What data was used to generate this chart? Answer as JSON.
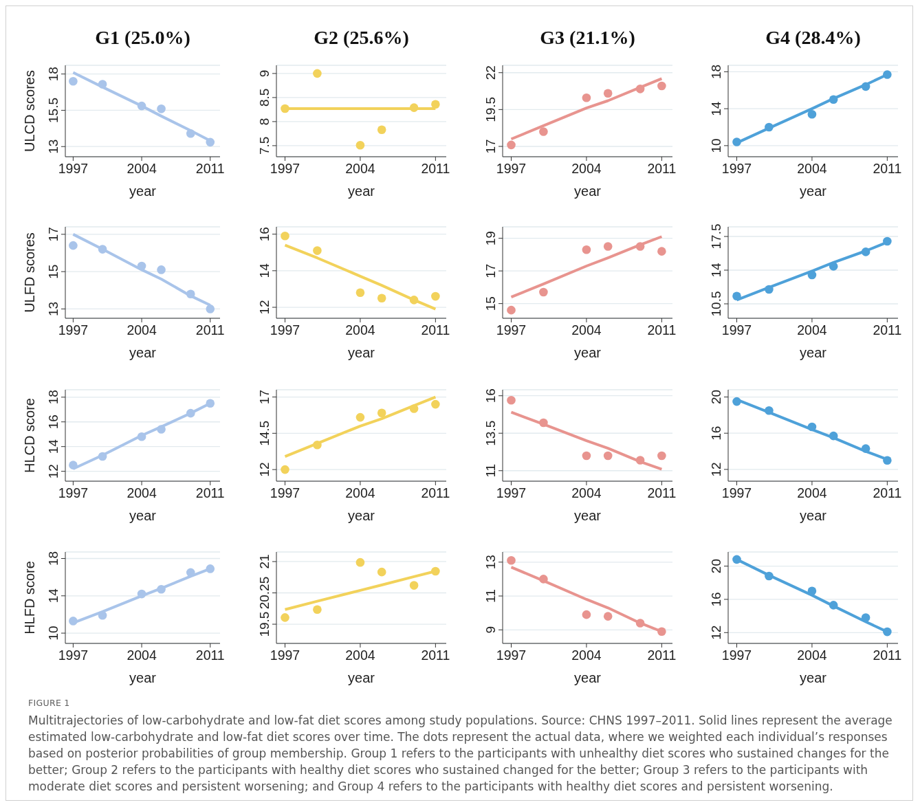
{
  "chart_data": [
    {
      "type": "scatter",
      "title": "G1 (25.0%)",
      "ylabel": "ULCD scores",
      "xlabel": "year",
      "x": [
        1997,
        2000,
        2004,
        2006,
        2009,
        2011
      ],
      "series": [
        {
          "color": "#a9c4ea",
          "values": [
            17.5,
            17.3,
            15.8,
            15.6,
            13.9,
            13.3
          ]
        },
        {
          "type": "line",
          "marker": "none",
          "color": "#a9c4ea",
          "values": [
            18.1,
            17.1,
            15.8,
            15.1,
            14.1,
            13.4
          ]
        }
      ],
      "xlim": [
        1996.2,
        2012
      ],
      "xticks": [
        1997,
        2004,
        2011
      ],
      "ylim": [
        12.3,
        18.6
      ],
      "yticks": [
        13,
        15.5,
        18
      ],
      "grid": "y",
      "marker": "circle"
    },
    {
      "type": "scatter",
      "title": "G2 (25.6%)",
      "xlabel": "year",
      "x": [
        1997,
        2000,
        2004,
        2006,
        2009,
        2011
      ],
      "series": [
        {
          "color": "#f2d25b",
          "values": [
            8.27,
            9.0,
            7.51,
            7.83,
            8.29,
            8.36
          ]
        },
        {
          "type": "line",
          "marker": "none",
          "color": "#f2d25b",
          "values": [
            8.27,
            8.27,
            8.27,
            8.27,
            8.27,
            8.27
          ]
        }
      ],
      "xlim": [
        1996.2,
        2012
      ],
      "xticks": [
        1997,
        2004,
        2011
      ],
      "ylim": [
        7.27,
        9.17
      ],
      "yticks": [
        7.5,
        8,
        8.5,
        9
      ],
      "grid": "y",
      "marker": "circle"
    },
    {
      "type": "scatter",
      "title": "G3 (21.1%)",
      "xlabel": "year",
      "x": [
        1997,
        2000,
        2004,
        2006,
        2009,
        2011
      ],
      "series": [
        {
          "color": "#e8948f",
          "values": [
            17.1,
            18.0,
            20.3,
            20.6,
            20.9,
            21.1
          ]
        },
        {
          "type": "line",
          "marker": "none",
          "color": "#e8948f",
          "values": [
            17.5,
            18.4,
            19.6,
            20.1,
            21.0,
            21.6
          ]
        }
      ],
      "xlim": [
        1996.2,
        2012
      ],
      "xticks": [
        1997,
        2004,
        2011
      ],
      "ylim": [
        16.3,
        22.5
      ],
      "yticks": [
        17,
        19.5,
        22
      ],
      "grid": "y",
      "marker": "circle"
    },
    {
      "type": "scatter",
      "title": "G4 (28.4%)",
      "xlabel": "year",
      "x": [
        1997,
        2000,
        2004,
        2006,
        2009,
        2011
      ],
      "series": [
        {
          "color": "#4ea1d9",
          "values": [
            10.4,
            12.0,
            13.4,
            15.0,
            16.4,
            17.7
          ]
        },
        {
          "type": "line",
          "marker": "none",
          "color": "#4ea1d9",
          "values": [
            10.3,
            11.9,
            14.0,
            15.1,
            16.6,
            17.7
          ]
        }
      ],
      "xlim": [
        1996.2,
        2012
      ],
      "xticks": [
        1997,
        2004,
        2011
      ],
      "ylim": [
        8.8,
        18.7
      ],
      "yticks": [
        10,
        14,
        18
      ],
      "grid": "y",
      "marker": "circle"
    },
    {
      "type": "scatter",
      "ylabel": "ULFD scores",
      "xlabel": "year",
      "x": [
        1997,
        2000,
        2004,
        2006,
        2009,
        2011
      ],
      "series": [
        {
          "color": "#a9c4ea",
          "values": [
            16.4,
            16.2,
            15.3,
            15.1,
            13.8,
            13.0
          ]
        },
        {
          "type": "line",
          "marker": "none",
          "color": "#a9c4ea",
          "values": [
            17.0,
            16.2,
            15.1,
            14.6,
            13.7,
            13.2
          ]
        }
      ],
      "xlim": [
        1996.2,
        2012
      ],
      "xticks": [
        1997,
        2004,
        2011
      ],
      "ylim": [
        12.5,
        17.4
      ],
      "yticks": [
        13,
        15,
        17
      ],
      "grid": "y",
      "marker": "circle"
    },
    {
      "type": "scatter",
      "xlabel": "year",
      "x": [
        1997,
        2000,
        2004,
        2006,
        2009,
        2011
      ],
      "series": [
        {
          "color": "#f2d25b",
          "values": [
            15.9,
            15.1,
            12.8,
            12.5,
            12.4,
            12.6
          ]
        },
        {
          "type": "line",
          "marker": "none",
          "color": "#f2d25b",
          "values": [
            15.4,
            14.7,
            13.7,
            13.2,
            12.4,
            11.9
          ]
        }
      ],
      "xlim": [
        1996.2,
        2012
      ],
      "xticks": [
        1997,
        2004,
        2011
      ],
      "ylim": [
        11.4,
        16.4
      ],
      "yticks": [
        12,
        14,
        16
      ],
      "grid": "y",
      "marker": "circle"
    },
    {
      "type": "scatter",
      "xlabel": "year",
      "x": [
        1997,
        2000,
        2004,
        2006,
        2009,
        2011
      ],
      "series": [
        {
          "color": "#e8948f",
          "values": [
            14.6,
            15.7,
            18.3,
            18.5,
            18.5,
            18.2
          ]
        },
        {
          "type": "line",
          "marker": "none",
          "color": "#e8948f",
          "values": [
            15.4,
            16.2,
            17.3,
            17.8,
            18.6,
            19.1
          ]
        }
      ],
      "xlim": [
        1996.2,
        2012
      ],
      "xticks": [
        1997,
        2004,
        2011
      ],
      "ylim": [
        14.1,
        19.7
      ],
      "yticks": [
        15,
        17,
        19
      ],
      "grid": "y",
      "marker": "circle"
    },
    {
      "type": "scatter",
      "xlabel": "year",
      "x": [
        1997,
        2000,
        2004,
        2006,
        2009,
        2011
      ],
      "series": [
        {
          "color": "#4ea1d9",
          "values": [
            11.3,
            12.0,
            13.5,
            14.4,
            15.9,
            17.0
          ]
        },
        {
          "type": "line",
          "marker": "none",
          "color": "#4ea1d9",
          "values": [
            10.9,
            12.2,
            13.9,
            14.8,
            16.0,
            16.9
          ]
        }
      ],
      "xlim": [
        1996.2,
        2012
      ],
      "xticks": [
        1997,
        2004,
        2011
      ],
      "ylim": [
        9.0,
        18.5
      ],
      "yticks": [
        10.5,
        14,
        17.5
      ],
      "grid": "y",
      "marker": "circle"
    },
    {
      "type": "scatter",
      "ylabel": "HLCD score",
      "xlabel": "year",
      "x": [
        1997,
        2000,
        2004,
        2006,
        2009,
        2011
      ],
      "series": [
        {
          "color": "#a9c4ea",
          "values": [
            12.5,
            13.2,
            14.8,
            15.4,
            16.7,
            17.5
          ]
        },
        {
          "type": "line",
          "marker": "none",
          "color": "#a9c4ea",
          "values": [
            12.2,
            13.3,
            14.9,
            15.6,
            16.7,
            17.5
          ]
        }
      ],
      "xlim": [
        1996.2,
        2012
      ],
      "xticks": [
        1997,
        2004,
        2011
      ],
      "ylim": [
        11.2,
        18.6
      ],
      "yticks": [
        12,
        14,
        16,
        18
      ],
      "grid": "y",
      "marker": "circle"
    },
    {
      "type": "scatter",
      "xlabel": "year",
      "x": [
        1997,
        2000,
        2004,
        2006,
        2009,
        2011
      ],
      "series": [
        {
          "color": "#f2d25b",
          "values": [
            12.0,
            13.7,
            15.6,
            15.9,
            16.2,
            16.5
          ]
        },
        {
          "type": "line",
          "marker": "none",
          "color": "#f2d25b",
          "values": [
            12.9,
            13.8,
            15.0,
            15.5,
            16.4,
            17.0
          ]
        }
      ],
      "xlim": [
        1996.2,
        2012
      ],
      "xticks": [
        1997,
        2004,
        2011
      ],
      "ylim": [
        11.2,
        17.5
      ],
      "yticks": [
        12,
        14.5,
        17
      ],
      "grid": "y",
      "marker": "circle"
    },
    {
      "type": "scatter",
      "xlabel": "year",
      "x": [
        1997,
        2000,
        2004,
        2006,
        2009,
        2011
      ],
      "series": [
        {
          "color": "#e8948f",
          "values": [
            15.7,
            14.2,
            12.0,
            12.0,
            11.7,
            12.0
          ]
        },
        {
          "type": "line",
          "marker": "none",
          "color": "#e8948f",
          "values": [
            14.9,
            14.1,
            13.0,
            12.5,
            11.6,
            11.1
          ]
        }
      ],
      "xlim": [
        1996.2,
        2012
      ],
      "xticks": [
        1997,
        2004,
        2011
      ],
      "ylim": [
        10.3,
        16.4
      ],
      "yticks": [
        11,
        13.5,
        16
      ],
      "grid": "y",
      "marker": "circle"
    },
    {
      "type": "scatter",
      "xlabel": "year",
      "x": [
        1997,
        2000,
        2004,
        2006,
        2009,
        2011
      ],
      "series": [
        {
          "color": "#4ea1d9",
          "values": [
            19.5,
            18.5,
            16.7,
            15.7,
            14.3,
            13.0
          ]
        },
        {
          "type": "line",
          "marker": "none",
          "color": "#4ea1d9",
          "values": [
            19.7,
            18.3,
            16.4,
            15.5,
            14.0,
            13.1
          ]
        }
      ],
      "xlim": [
        1996.2,
        2012
      ],
      "xticks": [
        1997,
        2004,
        2011
      ],
      "ylim": [
        10.7,
        20.8
      ],
      "yticks": [
        12,
        16,
        20
      ],
      "grid": "y",
      "marker": "circle"
    },
    {
      "type": "scatter",
      "ylabel": "HLFD score",
      "xlabel": "year",
      "x": [
        1997,
        2000,
        2004,
        2006,
        2009,
        2011
      ],
      "series": [
        {
          "color": "#a9c4ea",
          "values": [
            11.3,
            11.9,
            14.2,
            14.7,
            16.5,
            16.9
          ]
        },
        {
          "type": "line",
          "marker": "none",
          "color": "#a9c4ea",
          "values": [
            11.1,
            12.3,
            14.0,
            14.8,
            16.1,
            16.9
          ]
        }
      ],
      "xlim": [
        1996.2,
        2012
      ],
      "xticks": [
        1997,
        2004,
        2011
      ],
      "ylim": [
        8.9,
        18.7
      ],
      "yticks": [
        10,
        14,
        18
      ],
      "grid": "y",
      "marker": "circle"
    },
    {
      "type": "scatter",
      "xlabel": "year",
      "x": [
        1997,
        2000,
        2004,
        2006,
        2009,
        2011
      ],
      "series": [
        {
          "color": "#f2d25b",
          "values": [
            19.66,
            19.85,
            20.98,
            20.75,
            20.43,
            20.77
          ]
        },
        {
          "type": "line",
          "marker": "none",
          "color": "#f2d25b",
          "values": [
            19.85,
            20.05,
            20.31,
            20.44,
            20.64,
            20.77
          ]
        }
      ],
      "xlim": [
        1996.2,
        2012
      ],
      "xticks": [
        1997,
        2004,
        2011
      ],
      "ylim": [
        19.04,
        21.23
      ],
      "yticks": [
        19.5,
        20.25,
        21
      ],
      "grid": "y",
      "marker": "circle"
    },
    {
      "type": "scatter",
      "xlabel": "year",
      "x": [
        1997,
        2000,
        2004,
        2006,
        2009,
        2011
      ],
      "series": [
        {
          "color": "#e8948f",
          "values": [
            13.1,
            12.0,
            9.9,
            9.8,
            9.4,
            8.9
          ]
        },
        {
          "type": "line",
          "marker": "none",
          "color": "#e8948f",
          "values": [
            12.7,
            11.9,
            10.8,
            10.3,
            9.4,
            8.9
          ]
        }
      ],
      "xlim": [
        1996.2,
        2012
      ],
      "xticks": [
        1997,
        2004,
        2011
      ],
      "ylim": [
        8.2,
        13.6
      ],
      "yticks": [
        9,
        11,
        13
      ],
      "grid": "y",
      "marker": "circle"
    },
    {
      "type": "scatter",
      "xlabel": "year",
      "x": [
        1997,
        2000,
        2004,
        2006,
        2009,
        2011
      ],
      "series": [
        {
          "color": "#4ea1d9",
          "values": [
            20.8,
            18.8,
            17.0,
            15.3,
            13.8,
            12.1
          ]
        },
        {
          "type": "line",
          "marker": "none",
          "color": "#4ea1d9",
          "values": [
            20.8,
            18.9,
            16.5,
            15.2,
            13.3,
            12.1
          ]
        }
      ],
      "xlim": [
        1996.2,
        2012
      ],
      "xticks": [
        1997,
        2004,
        2011
      ],
      "ylim": [
        10.7,
        21.7
      ],
      "yticks": [
        12,
        16,
        20
      ],
      "grid": "y",
      "marker": "circle",
      "annotations": [
        "FIGURE 1",
        "Multitrajectories of low-carbohydrate and low-fat diet scores among study populations. Source: CHNS 1997–2011. Solid lines represent the average estimated low-carbohydrate and low-fat diet scores over time. The dots represent the actual data, where we weighted each individual’s responses based on posterior probabilities of group membership. Group 1 refers to the participants with unhealthy diet scores who sustained changes for the better; Group 2 refers to the participants with healthy diet scores who sustained changed for the better; Group 3 refers to the participants with moderate diet scores and persistent worsening; and Group 4 refers to the participants with healthy diet scores and persistent worsening."
      ]
    }
  ]
}
